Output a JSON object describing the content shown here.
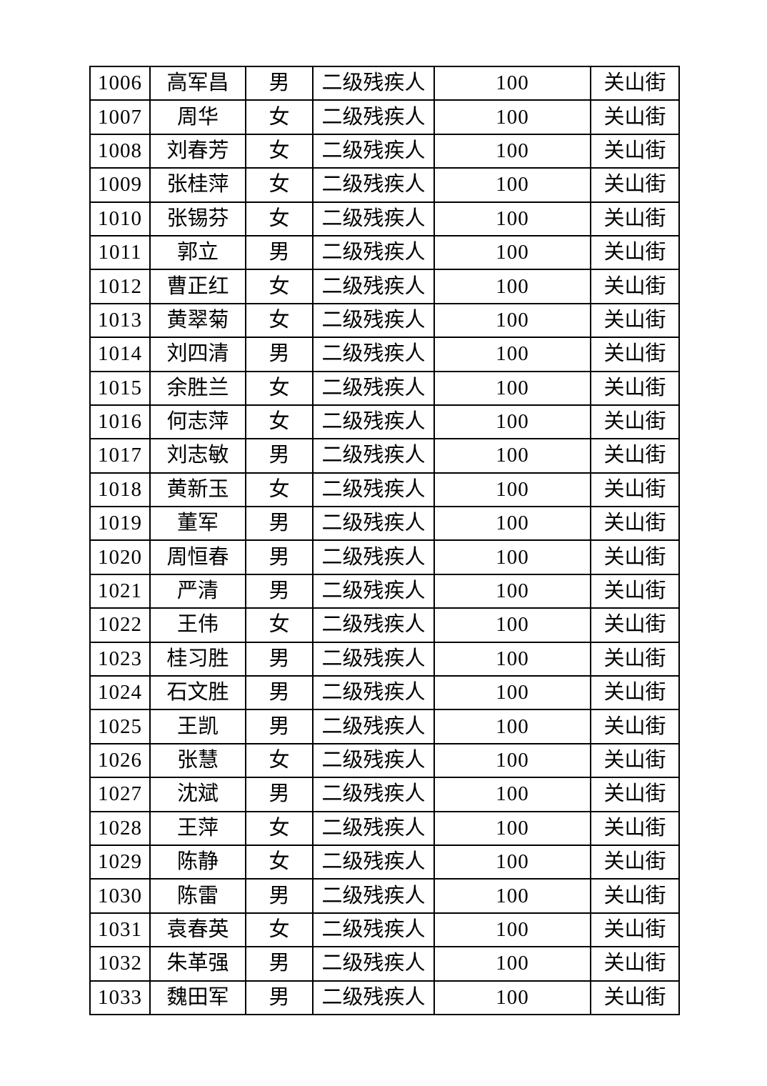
{
  "table": {
    "category_label": "二级残疾人",
    "street_label": "关山街",
    "amount_label": "100",
    "rows": [
      {
        "id": "1006",
        "name": "高军昌",
        "gender": "男",
        "category": "二级残疾人",
        "amount": "100",
        "street": "关山街"
      },
      {
        "id": "1007",
        "name": "周华",
        "gender": "女",
        "category": "二级残疾人",
        "amount": "100",
        "street": "关山街"
      },
      {
        "id": "1008",
        "name": "刘春芳",
        "gender": "女",
        "category": "二级残疾人",
        "amount": "100",
        "street": "关山街"
      },
      {
        "id": "1009",
        "name": "张桂萍",
        "gender": "女",
        "category": "二级残疾人",
        "amount": "100",
        "street": "关山街"
      },
      {
        "id": "1010",
        "name": "张锡芬",
        "gender": "女",
        "category": "二级残疾人",
        "amount": "100",
        "street": "关山街"
      },
      {
        "id": "1011",
        "name": "郭立",
        "gender": "男",
        "category": "二级残疾人",
        "amount": "100",
        "street": "关山街"
      },
      {
        "id": "1012",
        "name": "曹正红",
        "gender": "女",
        "category": "二级残疾人",
        "amount": "100",
        "street": "关山街"
      },
      {
        "id": "1013",
        "name": "黄翠菊",
        "gender": "女",
        "category": "二级残疾人",
        "amount": "100",
        "street": "关山街"
      },
      {
        "id": "1014",
        "name": "刘四清",
        "gender": "男",
        "category": "二级残疾人",
        "amount": "100",
        "street": "关山街"
      },
      {
        "id": "1015",
        "name": "余胜兰",
        "gender": "女",
        "category": "二级残疾人",
        "amount": "100",
        "street": "关山街"
      },
      {
        "id": "1016",
        "name": "何志萍",
        "gender": "女",
        "category": "二级残疾人",
        "amount": "100",
        "street": "关山街"
      },
      {
        "id": "1017",
        "name": "刘志敏",
        "gender": "男",
        "category": "二级残疾人",
        "amount": "100",
        "street": "关山街"
      },
      {
        "id": "1018",
        "name": "黄新玉",
        "gender": "女",
        "category": "二级残疾人",
        "amount": "100",
        "street": "关山街"
      },
      {
        "id": "1019",
        "name": "董军",
        "gender": "男",
        "category": "二级残疾人",
        "amount": "100",
        "street": "关山街"
      },
      {
        "id": "1020",
        "name": "周恒春",
        "gender": "男",
        "category": "二级残疾人",
        "amount": "100",
        "street": "关山街"
      },
      {
        "id": "1021",
        "name": "严清",
        "gender": "男",
        "category": "二级残疾人",
        "amount": "100",
        "street": "关山街"
      },
      {
        "id": "1022",
        "name": "王伟",
        "gender": "女",
        "category": "二级残疾人",
        "amount": "100",
        "street": "关山街"
      },
      {
        "id": "1023",
        "name": "桂习胜",
        "gender": "男",
        "category": "二级残疾人",
        "amount": "100",
        "street": "关山街"
      },
      {
        "id": "1024",
        "name": "石文胜",
        "gender": "男",
        "category": "二级残疾人",
        "amount": "100",
        "street": "关山街"
      },
      {
        "id": "1025",
        "name": "王凯",
        "gender": "男",
        "category": "二级残疾人",
        "amount": "100",
        "street": "关山街"
      },
      {
        "id": "1026",
        "name": "张慧",
        "gender": "女",
        "category": "二级残疾人",
        "amount": "100",
        "street": "关山街"
      },
      {
        "id": "1027",
        "name": "沈斌",
        "gender": "男",
        "category": "二级残疾人",
        "amount": "100",
        "street": "关山街"
      },
      {
        "id": "1028",
        "name": "王萍",
        "gender": "女",
        "category": "二级残疾人",
        "amount": "100",
        "street": "关山街"
      },
      {
        "id": "1029",
        "name": "陈静",
        "gender": "女",
        "category": "二级残疾人",
        "amount": "100",
        "street": "关山街"
      },
      {
        "id": "1030",
        "name": "陈雷",
        "gender": "男",
        "category": "二级残疾人",
        "amount": "100",
        "street": "关山街"
      },
      {
        "id": "1031",
        "name": "袁春英",
        "gender": "女",
        "category": "二级残疾人",
        "amount": "100",
        "street": "关山街"
      },
      {
        "id": "1032",
        "name": "朱革强",
        "gender": "男",
        "category": "二级残疾人",
        "amount": "100",
        "street": "关山街"
      },
      {
        "id": "1033",
        "name": "魏田军",
        "gender": "男",
        "category": "二级残疾人",
        "amount": "100",
        "street": "关山街"
      }
    ]
  }
}
